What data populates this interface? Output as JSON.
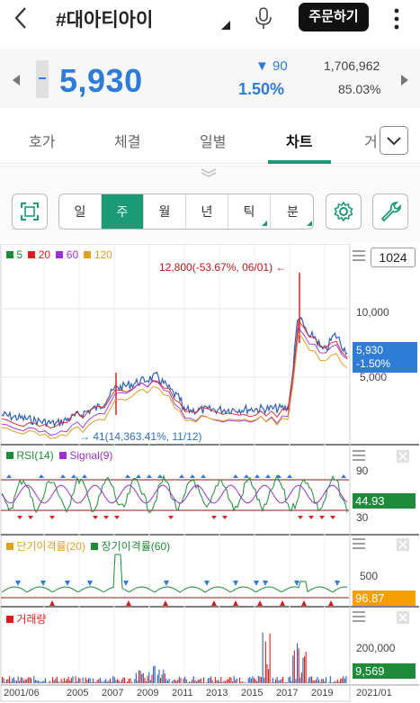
{
  "header": {
    "title": "#대아티아이",
    "order_label": "주문하기"
  },
  "quote": {
    "price": "5,930",
    "change_amount": "▼ 90",
    "change_percent": "1.50%",
    "volume": "1,706,962",
    "ratio": "85.03%"
  },
  "tabs": [
    {
      "label": "호가",
      "active": false
    },
    {
      "label": "체결",
      "active": false
    },
    {
      "label": "일별",
      "active": false
    },
    {
      "label": "차트",
      "active": true
    },
    {
      "label": "거",
      "active": false
    }
  ],
  "toolbar": {
    "periods": [
      {
        "label": "일",
        "active": false,
        "has_menu": false
      },
      {
        "label": "주",
        "active": true,
        "has_menu": false
      },
      {
        "label": "월",
        "active": false,
        "has_menu": false
      },
      {
        "label": "년",
        "active": false,
        "has_menu": false
      },
      {
        "label": "틱",
        "active": false,
        "has_menu": true
      },
      {
        "label": "분",
        "active": false,
        "has_menu": true
      }
    ]
  },
  "chart": {
    "count_label": "1024",
    "ma_legend": [
      {
        "label": "5",
        "color": "#1f8b3a"
      },
      {
        "label": "20",
        "color": "#d62020"
      },
      {
        "label": "60",
        "color": "#9b30d0"
      },
      {
        "label": "120",
        "color": "#e0a020"
      }
    ],
    "high_annotation": "12,800(-53.67%, 06/01) ←",
    "low_annotation": "→ 41(14,363.41%, 11/12)",
    "price_axis": [
      "10,000",
      "5,000"
    ],
    "current_price_badge": {
      "line1": "5,930",
      "line2": "-1.50%",
      "color": "#2f7bd8"
    },
    "rsi": {
      "legend": [
        {
          "label": "RSI(14)",
          "color": "#1f8b3a"
        },
        {
          "label": "Signal(9)",
          "color": "#9b30d0"
        }
      ],
      "axis": [
        "90",
        "30"
      ],
      "badge": "44.93",
      "badge_color": "#1f8b3a"
    },
    "disparity": {
      "legend": [
        {
          "label": "단기이격률(20)",
          "color": "#e0a020"
        },
        {
          "label": "장기이격률(60)",
          "color": "#1f8b3a"
        }
      ],
      "axis": [
        "500"
      ],
      "badge": "96.87",
      "badge_color": "#f5a000"
    },
    "volume": {
      "legend": [
        {
          "label": "거래량",
          "color": "#d62020"
        }
      ],
      "axis": [
        "200,000"
      ],
      "badge": "9,569",
      "badge_color": "#1f8b3a"
    },
    "x_labels": [
      "2001/06",
      "2005",
      "2007",
      "2009",
      "2011",
      "2013",
      "2015",
      "2017",
      "2019",
      "2021/01"
    ]
  }
}
